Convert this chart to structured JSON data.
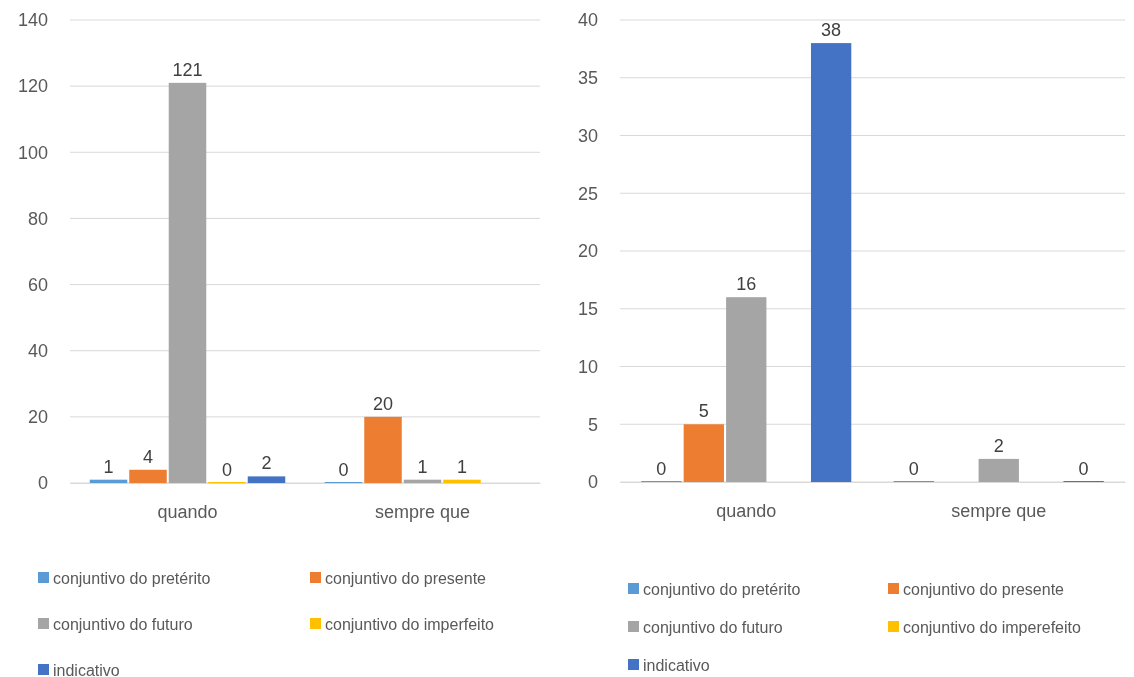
{
  "chart_data": [
    {
      "type": "bar",
      "categories": [
        "quando",
        "sempre que"
      ],
      "series": [
        {
          "name": "conjuntivo do pretérito",
          "color": "#5b9bd5",
          "values": [
            1,
            0
          ]
        },
        {
          "name": "conjuntivo do presente",
          "color": "#ed7d31",
          "values": [
            4,
            20
          ]
        },
        {
          "name": "conjuntivo do futuro",
          "color": "#a5a5a5",
          "values": [
            121,
            1
          ]
        },
        {
          "name": "conjuntivo do imperfeito",
          "color": "#ffc000",
          "values": [
            0,
            1
          ]
        },
        {
          "name": "indicativo",
          "color": "#4472c4",
          "values": [
            2,
            null
          ]
        }
      ],
      "ylim": [
        0,
        140
      ],
      "yticks": [
        0,
        20,
        40,
        60,
        80,
        100,
        120,
        140
      ],
      "grid": "y",
      "legend": "bottom",
      "data_labels": true
    },
    {
      "type": "bar",
      "categories": [
        "quando",
        "sempre que"
      ],
      "series": [
        {
          "name": "conjuntivo do pretérito",
          "color": "#5b9bd5",
          "values": [
            0,
            0
          ]
        },
        {
          "name": "conjuntivo do presente",
          "color": "#ed7d31",
          "values": [
            5,
            null
          ]
        },
        {
          "name": "conjuntivo do futuro",
          "color": "#a5a5a5",
          "values": [
            16,
            2
          ]
        },
        {
          "name": "conjuntivo do imperefeito",
          "color": "#ffc000",
          "values": [
            null,
            null
          ]
        },
        {
          "name": "indicativo",
          "color": "#4472c4",
          "values": [
            38,
            0
          ]
        }
      ],
      "ylim": [
        0,
        40
      ],
      "yticks": [
        0,
        5,
        10,
        15,
        20,
        25,
        30,
        35,
        40
      ],
      "grid": "y",
      "legend": "bottom",
      "data_labels": true
    }
  ]
}
